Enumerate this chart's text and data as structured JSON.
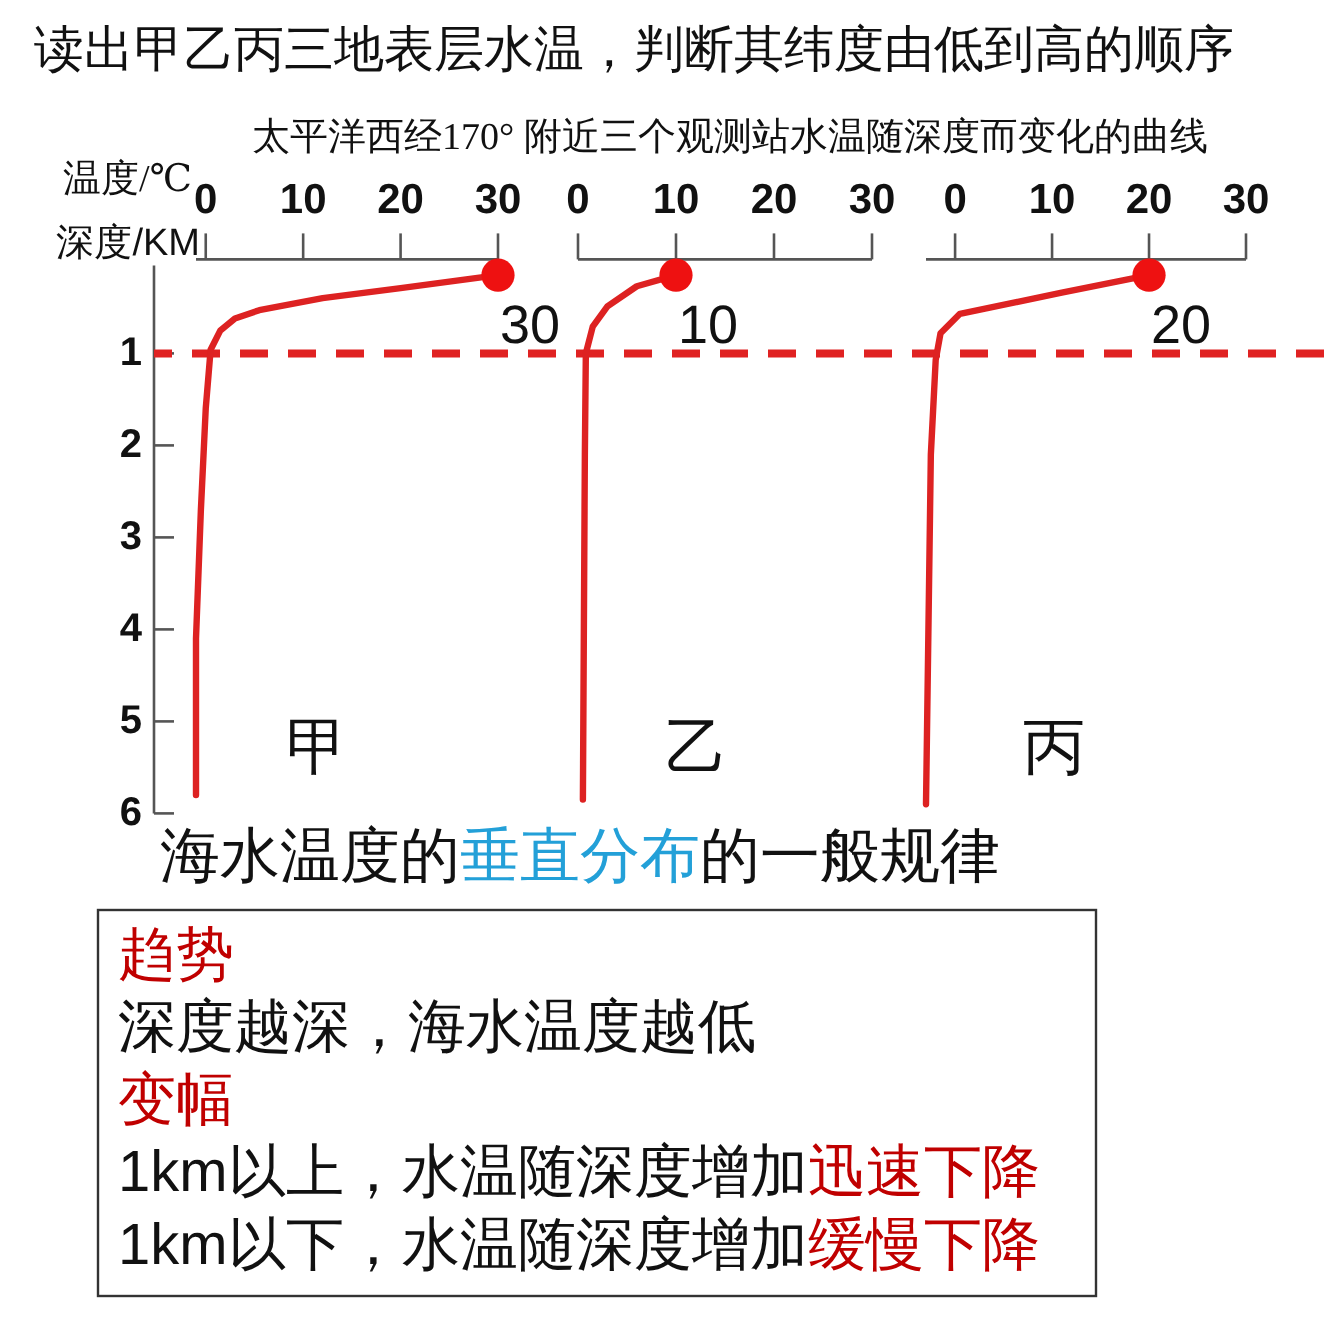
{
  "chart_data": [
    {
      "type": "line",
      "title": "读出甲乙丙三地表层水温，判断其纬度由低到高的顺序",
      "subtitle": "太平洋西经170° 附近三个观测站水温随深度而变化的曲线",
      "xlabel": "温度/℃",
      "ylabel": "深度/KM",
      "xlim": [
        -1,
        30
      ],
      "xticks": [
        0,
        10,
        20,
        30
      ],
      "ylim": [
        6,
        0
      ],
      "yticks": [
        1,
        2,
        3,
        4,
        5,
        6
      ],
      "series": [
        {
          "name": "甲",
          "color": "#dd2222",
          "x": [
            30,
            20,
            12,
            5.5,
            3,
            1.5,
            0.5,
            0,
            -0.5,
            -1,
            -1
          ],
          "values": [
            0.15,
            0.29,
            0.4,
            0.53,
            0.62,
            0.75,
            0.96,
            1.6,
            2.7,
            4.1,
            5.8
          ]
        },
        {
          "type": "scatter",
          "marker": "circle",
          "color": "#ee1111",
          "x": [
            30
          ],
          "values": [
            0.15
          ]
        }
      ],
      "ref_lines": [
        {
          "axis": "y",
          "value": 1,
          "color": "#e02222",
          "line_style": "dashed"
        }
      ],
      "annotations": [
        {
          "text": "30",
          "x": 30,
          "y": 0.15
        },
        "海水温度的",
        "垂直分布",
        "的一般规律",
        "趋势",
        "深度越深，海水温度越低",
        "变幅",
        "1km以上，水温随深度增加",
        "迅速下降",
        "1km以下，水温随深度增加",
        "缓慢下降"
      ]
    },
    {
      "type": "line",
      "xlim": [
        0,
        30
      ],
      "xticks": [
        0,
        10,
        20,
        30
      ],
      "ylim": [
        6,
        0
      ],
      "tick_labels": "x",
      "series": [
        {
          "name": "乙",
          "color": "#dd2222",
          "x": [
            10,
            6,
            3,
            1.5,
            0.8,
            0.7,
            0.5
          ],
          "values": [
            0.15,
            0.27,
            0.49,
            0.71,
            1.0,
            2.1,
            5.85
          ]
        },
        {
          "type": "scatter",
          "marker": "circle",
          "color": "#ee1111",
          "x": [
            10
          ],
          "values": [
            0.15
          ]
        }
      ],
      "ref_lines": [
        {
          "axis": "y",
          "value": 1,
          "color": "#e02222",
          "line_style": "dashed"
        }
      ],
      "annotations": [
        {
          "text": "10",
          "x": 10,
          "y": 0.15
        }
      ]
    },
    {
      "type": "line",
      "xlim": [
        -3,
        30
      ],
      "xticks": [
        0,
        10,
        20,
        30
      ],
      "ylim": [
        6,
        0
      ],
      "tick_labels": "x",
      "series": [
        {
          "name": "丙",
          "color": "#dd2222",
          "x": [
            20,
            11,
            0.5,
            -1.5,
            -2,
            -2.5,
            -3
          ],
          "values": [
            0.15,
            0.34,
            0.57,
            0.78,
            1.07,
            2.1,
            5.9
          ]
        },
        {
          "type": "scatter",
          "marker": "circle",
          "color": "#ee1111",
          "x": [
            20
          ],
          "values": [
            0.15
          ]
        }
      ],
      "ref_lines": [
        {
          "axis": "y",
          "value": 1,
          "color": "#e02222",
          "line_style": "dashed"
        }
      ],
      "annotations": [
        {
          "text": "20",
          "x": 20,
          "y": 0.15
        }
      ]
    }
  ]
}
